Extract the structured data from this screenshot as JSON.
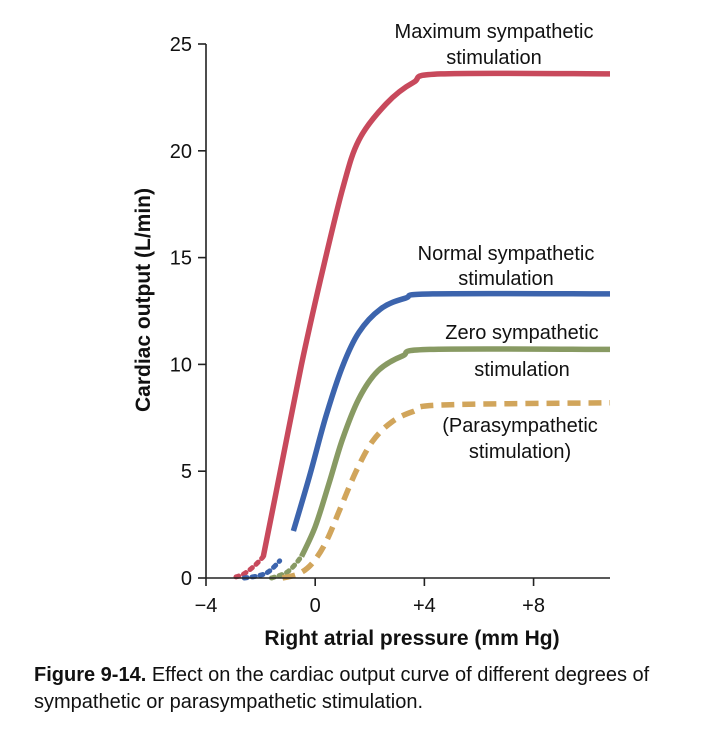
{
  "chart_data": {
    "type": "line",
    "xlabel": "Right atrial pressure (mm Hg)",
    "ylabel": "Cardiac output (L/min)",
    "xlim": [
      -4,
      10.8
    ],
    "ylim": [
      0,
      25
    ],
    "x_ticks": [
      -4,
      0,
      4,
      8
    ],
    "x_tick_labels": [
      "−4",
      "0",
      "+4",
      "+8"
    ],
    "y_ticks": [
      0,
      5,
      10,
      15,
      20,
      25
    ],
    "y_tick_labels": [
      "0",
      "5",
      "10",
      "15",
      "20",
      "25"
    ],
    "series": [
      {
        "name": "Maximum sympathetic stimulation",
        "label_lines": [
          "Maximum sympathetic",
          "stimulation"
        ],
        "color": "#c8495c",
        "style": "solid",
        "points": [
          [
            -2.9,
            0.05
          ],
          [
            -2.6,
            0.2
          ],
          [
            -2.2,
            0.6
          ],
          [
            -1.9,
            1.0
          ],
          [
            -1.2,
            5.5
          ],
          [
            -0.5,
            10.0
          ],
          [
            0.2,
            14.0
          ],
          [
            1.0,
            18.2
          ],
          [
            1.6,
            20.5
          ],
          [
            2.6,
            22.2
          ],
          [
            3.6,
            23.2
          ],
          [
            4.6,
            23.6
          ],
          [
            10.8,
            23.6
          ]
        ]
      },
      {
        "name": "Normal sympathetic stimulation",
        "label_lines": [
          "Normal sympathetic",
          "stimulation"
        ],
        "color": "#3c64ad",
        "style": "solid",
        "points": [
          [
            -2.6,
            0.0
          ],
          [
            -2.1,
            0.1
          ],
          [
            -1.7,
            0.3
          ],
          [
            -1.3,
            0.8
          ],
          [
            -0.8,
            2.2
          ],
          [
            -0.2,
            4.8
          ],
          [
            0.4,
            7.6
          ],
          [
            1.0,
            9.9
          ],
          [
            1.6,
            11.5
          ],
          [
            2.4,
            12.6
          ],
          [
            3.3,
            13.1
          ],
          [
            4.3,
            13.3
          ],
          [
            10.8,
            13.3
          ]
        ]
      },
      {
        "name": "Zero sympathetic stimulation",
        "label_lines": [
          "Zero sympathetic",
          "stimulation"
        ],
        "color": "#889a63",
        "style": "solid",
        "points": [
          [
            -1.6,
            0.0
          ],
          [
            -1.0,
            0.3
          ],
          [
            -0.5,
            1.0
          ],
          [
            0.0,
            2.4
          ],
          [
            0.5,
            4.4
          ],
          [
            1.0,
            6.5
          ],
          [
            1.6,
            8.4
          ],
          [
            2.3,
            9.7
          ],
          [
            3.2,
            10.4
          ],
          [
            4.2,
            10.7
          ],
          [
            10.8,
            10.7
          ]
        ]
      },
      {
        "name": "(Parasympathetic stimulation)",
        "label_lines": [
          "(Parasympathetic",
          "stimulation)"
        ],
        "color": "#d1a55b",
        "style": "dashed",
        "points": [
          [
            -1.2,
            0.0
          ],
          [
            -0.6,
            0.2
          ],
          [
            -0.1,
            0.7
          ],
          [
            0.4,
            1.7
          ],
          [
            0.9,
            3.2
          ],
          [
            1.5,
            5.0
          ],
          [
            2.1,
            6.4
          ],
          [
            2.8,
            7.3
          ],
          [
            3.6,
            7.8
          ],
          [
            4.6,
            8.1
          ],
          [
            10.8,
            8.2
          ]
        ]
      }
    ]
  },
  "caption": {
    "figure_number": "Figure 9-14.",
    "text": " Effect on the cardiac output curve of different degrees of sympathetic or parasympathetic stimulation."
  }
}
